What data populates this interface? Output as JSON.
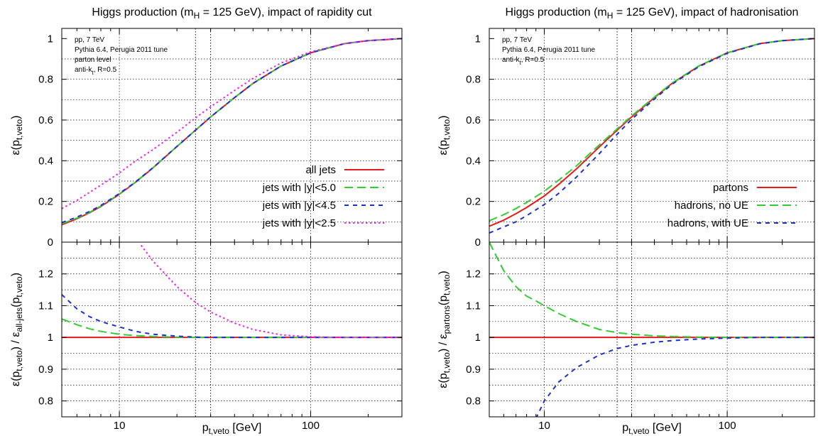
{
  "colors": {
    "red": "#e41a1c",
    "green": "#33cc33",
    "blue": "#1f2fcc",
    "magenta": "#e627e6"
  },
  "chart_data": [
    {
      "type": "line",
      "title": {
        "pre": "Higgs production (m",
        "sub": "H",
        "post": " = 125 GeV), impact of rapidity cut"
      },
      "notes": [
        "pp, 7 TeV",
        "Pythia 6.4, Perugia 2011 tune",
        "parton level",
        "anti-kt, R=0.5"
      ],
      "xlabel": {
        "main": "p",
        "sub": "t,veto",
        "post": " [GeV]"
      },
      "x_scale": "log",
      "xlim": [
        5,
        300
      ],
      "x_ticks": [
        10,
        100
      ],
      "x_lines": [
        25,
        30
      ],
      "top": {
        "ylabel": {
          "main": "ε(p",
          "sub": "t,veto",
          "post": ")"
        },
        "ylim": [
          0,
          1.05
        ],
        "y_ticks": [
          0,
          0.2,
          0.4,
          0.6,
          0.8,
          1
        ],
        "y_grid": [
          0.1,
          0.2,
          0.3,
          0.4,
          0.5,
          0.6,
          0.7,
          0.8,
          0.9
        ],
        "legend_position": "bottom-right",
        "x": [
          5,
          6,
          7,
          8,
          10,
          12,
          15,
          20,
          25,
          30,
          40,
          50,
          70,
          100,
          150,
          200,
          300
        ],
        "series": [
          {
            "name": "all jets",
            "color": "red",
            "dash": "solid",
            "values": [
              0.085,
              0.115,
              0.145,
              0.175,
              0.235,
              0.29,
              0.365,
              0.47,
              0.55,
              0.615,
              0.71,
              0.78,
              0.865,
              0.93,
              0.975,
              0.99,
              1.0
            ]
          },
          {
            "name": "jets with |y|<5.0",
            "color": "green",
            "dash": "long",
            "values": [
              0.09,
              0.118,
              0.147,
              0.177,
              0.237,
              0.291,
              0.366,
              0.47,
              0.55,
              0.615,
              0.71,
              0.78,
              0.865,
              0.93,
              0.975,
              0.99,
              1.0
            ]
          },
          {
            "name": "jets with |y|<4.5",
            "color": "blue",
            "dash": "short",
            "values": [
              0.096,
              0.123,
              0.151,
              0.18,
              0.239,
              0.292,
              0.366,
              0.47,
              0.55,
              0.615,
              0.71,
              0.78,
              0.865,
              0.93,
              0.975,
              0.99,
              1.0
            ]
          },
          {
            "name": "jets with |y|<2.5",
            "color": "magenta",
            "dash": "dot",
            "values": [
              0.165,
              0.205,
              0.245,
              0.28,
              0.34,
              0.395,
              0.455,
              0.54,
              0.61,
              0.665,
              0.745,
              0.805,
              0.88,
              0.935,
              0.975,
              0.99,
              1.0
            ]
          }
        ]
      },
      "bottom": {
        "ylabel": {
          "a": "ε(p",
          "a_sub": "t,veto",
          "b": ") / ε",
          "b_sub": "all-jets",
          "c": "(p",
          "c_sub": "t,veto",
          "d": ")"
        },
        "ylim": [
          0.75,
          1.3
        ],
        "y_ticks": [
          0.8,
          0.9,
          1,
          1.1,
          1.2
        ],
        "y_grid": [
          0.8,
          0.85,
          0.9,
          0.95,
          1.05,
          1.1,
          1.15,
          1.2,
          1.25
        ],
        "x": [
          5,
          6,
          7,
          8,
          10,
          12,
          13,
          15,
          20,
          25,
          30,
          40,
          50,
          70,
          100,
          150,
          200,
          300
        ],
        "series": [
          {
            "name": "all jets",
            "color": "red",
            "dash": "solid",
            "values": [
              1,
              1,
              1,
              1,
              1,
              1,
              1,
              1,
              1,
              1,
              1,
              1,
              1,
              1,
              1,
              1,
              1,
              1
            ]
          },
          {
            "name": "jets with |y|<5.0",
            "color": "green",
            "dash": "long",
            "values": [
              1.058,
              1.04,
              1.027,
              1.019,
              1.01,
              1.006,
              1.005,
              1.003,
              1.001,
              1.0,
              1.0,
              1.0,
              1.0,
              1.0,
              1.0,
              1.0,
              1.0,
              1.0
            ]
          },
          {
            "name": "jets with |y|<4.5",
            "color": "blue",
            "dash": "short",
            "values": [
              1.135,
              1.09,
              1.065,
              1.05,
              1.033,
              1.02,
              1.016,
              1.01,
              1.004,
              1.001,
              1.0,
              1.0,
              1.0,
              1.0,
              1.0,
              1.0,
              1.0,
              1.0
            ]
          },
          {
            "name": "jets with |y|<2.5",
            "color": "magenta",
            "dash": "dot",
            "values": [
              null,
              null,
              null,
              null,
              null,
              null,
              1.29,
              1.24,
              1.16,
              1.11,
              1.08,
              1.045,
              1.025,
              1.008,
              1.002,
              1.0,
              1.0,
              1.0
            ]
          }
        ]
      }
    },
    {
      "type": "line",
      "title": {
        "pre": "Higgs production (m",
        "sub": "H",
        "post": " = 125 GeV), impact of hadronisation"
      },
      "notes": [
        "pp, 7 TeV",
        "Pythia 6.4, Perugia 2011 tune",
        "anti-kt, R=0.5"
      ],
      "xlabel": {
        "main": "p",
        "sub": "t,veto",
        "post": " [GeV]"
      },
      "x_scale": "log",
      "xlim": [
        5,
        300
      ],
      "x_ticks": [
        10,
        100
      ],
      "x_lines": [
        25,
        30
      ],
      "top": {
        "ylabel": {
          "main": "ε(p",
          "sub": "t,veto",
          "post": ")"
        },
        "ylim": [
          0,
          1.05
        ],
        "y_ticks": [
          0,
          0.2,
          0.4,
          0.6,
          0.8,
          1
        ],
        "y_grid": [
          0.1,
          0.2,
          0.3,
          0.4,
          0.5,
          0.6,
          0.7,
          0.8,
          0.9
        ],
        "legend_position": "bottom-right",
        "x": [
          5,
          6,
          7,
          8,
          10,
          12,
          15,
          20,
          25,
          30,
          40,
          50,
          70,
          100,
          150,
          200,
          300
        ],
        "series": [
          {
            "name": "partons",
            "color": "red",
            "dash": "solid",
            "values": [
              0.078,
              0.108,
              0.14,
              0.17,
              0.227,
              0.284,
              0.36,
              0.468,
              0.55,
              0.615,
              0.71,
              0.78,
              0.865,
              0.93,
              0.975,
              0.99,
              1.0
            ]
          },
          {
            "name": "hadrons, no UE",
            "color": "green",
            "dash": "long",
            "values": [
              0.105,
              0.135,
              0.165,
              0.195,
              0.25,
              0.305,
              0.375,
              0.478,
              0.556,
              0.62,
              0.713,
              0.782,
              0.866,
              0.93,
              0.975,
              0.99,
              1.0
            ]
          },
          {
            "name": "hadrons, with UE",
            "color": "blue",
            "dash": "short",
            "values": [
              0.045,
              0.075,
              0.1,
              0.13,
              0.185,
              0.24,
              0.32,
              0.435,
              0.53,
              0.603,
              0.703,
              0.776,
              0.862,
              0.928,
              0.974,
              0.99,
              1.0
            ]
          }
        ]
      },
      "bottom": {
        "ylabel": {
          "a": "ε(p",
          "a_sub": "t,veto",
          "b": ") / ε",
          "b_sub": "partons",
          "c": "(p",
          "c_sub": "t,veto",
          "d": ")"
        },
        "ylim": [
          0.75,
          1.3
        ],
        "y_ticks": [
          0.8,
          0.9,
          1,
          1.1,
          1.2
        ],
        "y_grid": [
          0.8,
          0.85,
          0.9,
          0.95,
          1.05,
          1.1,
          1.15,
          1.2,
          1.25
        ],
        "x": [
          5,
          6,
          7,
          8,
          9,
          10,
          12,
          15,
          20,
          25,
          30,
          40,
          50,
          70,
          100,
          150,
          200,
          300
        ],
        "series": [
          {
            "name": "partons",
            "color": "red",
            "dash": "solid",
            "values": [
              1,
              1,
              1,
              1,
              1,
              1,
              1,
              1,
              1,
              1,
              1,
              1,
              1,
              1,
              1,
              1,
              1,
              1
            ]
          },
          {
            "name": "hadrons, no UE",
            "color": "green",
            "dash": "long",
            "values": [
              1.3,
              1.21,
              1.16,
              1.13,
              1.115,
              1.1,
              1.075,
              1.05,
              1.025,
              1.015,
              1.01,
              1.005,
              1.003,
              1.001,
              1.0,
              1.0,
              1.0,
              1.0
            ]
          },
          {
            "name": "hadrons, with UE",
            "color": "blue",
            "dash": "short",
            "values": [
              null,
              null,
              null,
              null,
              0.745,
              0.8,
              0.86,
              0.905,
              0.945,
              0.965,
              0.975,
              0.985,
              0.99,
              0.995,
              0.998,
              1.0,
              1.0,
              1.0
            ]
          }
        ]
      }
    }
  ]
}
